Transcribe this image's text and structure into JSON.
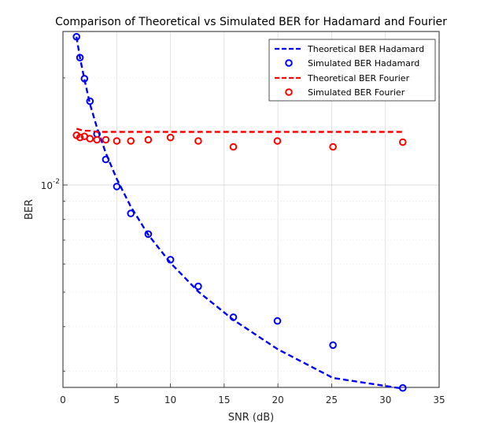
{
  "chart_data": {
    "type": "line",
    "title": "Comparison of Theoretical vs Simulated BER for Hadamard and Fourier",
    "xlabel": "SNR (dB)",
    "ylabel": "BER",
    "xlim": [
      0,
      35
    ],
    "ylim": [
      0.0027,
      0.027
    ],
    "yscale": "log",
    "grid": true,
    "legend_position": "top-right",
    "xticks": [
      0,
      5,
      10,
      15,
      20,
      25,
      30,
      35
    ],
    "xtick_labels": [
      "0",
      "5",
      "10",
      "15",
      "20",
      "25",
      "30",
      "35"
    ],
    "ytick_major": [
      0.01
    ],
    "ytick_major_labels": [
      {
        "base": "10",
        "exp": "-2"
      }
    ],
    "ytick_minor": [
      0.003,
      0.004,
      0.005,
      0.006,
      0.007,
      0.008,
      0.009,
      0.02
    ],
    "series": [
      {
        "name": "Theoretical BER Hadamard",
        "style": "dashed-line",
        "color": "#0000ff",
        "x": [
          1.26,
          1.58,
          2.0,
          2.51,
          3.16,
          3.98,
          5.01,
          6.31,
          7.94,
          10.0,
          12.59,
          15.85,
          19.95,
          25.12,
          31.62
        ],
        "y": [
          0.0261,
          0.0228,
          0.0198,
          0.0169,
          0.0145,
          0.0123,
          0.0104,
          0.00869,
          0.00725,
          0.00604,
          0.00502,
          0.00418,
          0.00346,
          0.00287,
          0.00268
        ]
      },
      {
        "name": "Simulated BER Hadamard",
        "style": "circle-markers",
        "color": "#0000ff",
        "x": [
          1.26,
          1.58,
          2.0,
          2.51,
          3.16,
          3.98,
          5.01,
          6.31,
          7.94,
          10.0,
          12.59,
          15.85,
          19.95,
          25.12,
          31.62
        ],
        "y": [
          0.0261,
          0.0228,
          0.0199,
          0.0172,
          0.0139,
          0.0118,
          0.0099,
          0.00832,
          0.00728,
          0.00617,
          0.00519,
          0.00425,
          0.00415,
          0.00355,
          0.00269
        ]
      },
      {
        "name": "Theoretical BER Fourier",
        "style": "dashed-line",
        "color": "#ff0000",
        "x": [
          1.26,
          1.58,
          2.0,
          2.51,
          3.16,
          3.98,
          5.01,
          6.31,
          7.94,
          10.0,
          12.59,
          15.85,
          19.95,
          25.12,
          31.62
        ],
        "y": [
          0.0144,
          0.0143,
          0.0142,
          0.0142,
          0.0141,
          0.0141,
          0.0141,
          0.0141,
          0.0141,
          0.0141,
          0.0141,
          0.0141,
          0.0141,
          0.0141,
          0.0141
        ]
      },
      {
        "name": "Simulated BER Fourier",
        "style": "circle-markers",
        "color": "#ff0000",
        "x": [
          1.26,
          1.58,
          2.0,
          2.51,
          3.16,
          3.98,
          5.01,
          6.31,
          7.94,
          10.0,
          12.59,
          15.85,
          19.95,
          25.12,
          31.62
        ],
        "y": [
          0.0138,
          0.0136,
          0.0137,
          0.0135,
          0.0134,
          0.0134,
          0.0133,
          0.0133,
          0.0134,
          0.0136,
          0.0133,
          0.0128,
          0.0133,
          0.0128,
          0.0132
        ]
      }
    ]
  }
}
